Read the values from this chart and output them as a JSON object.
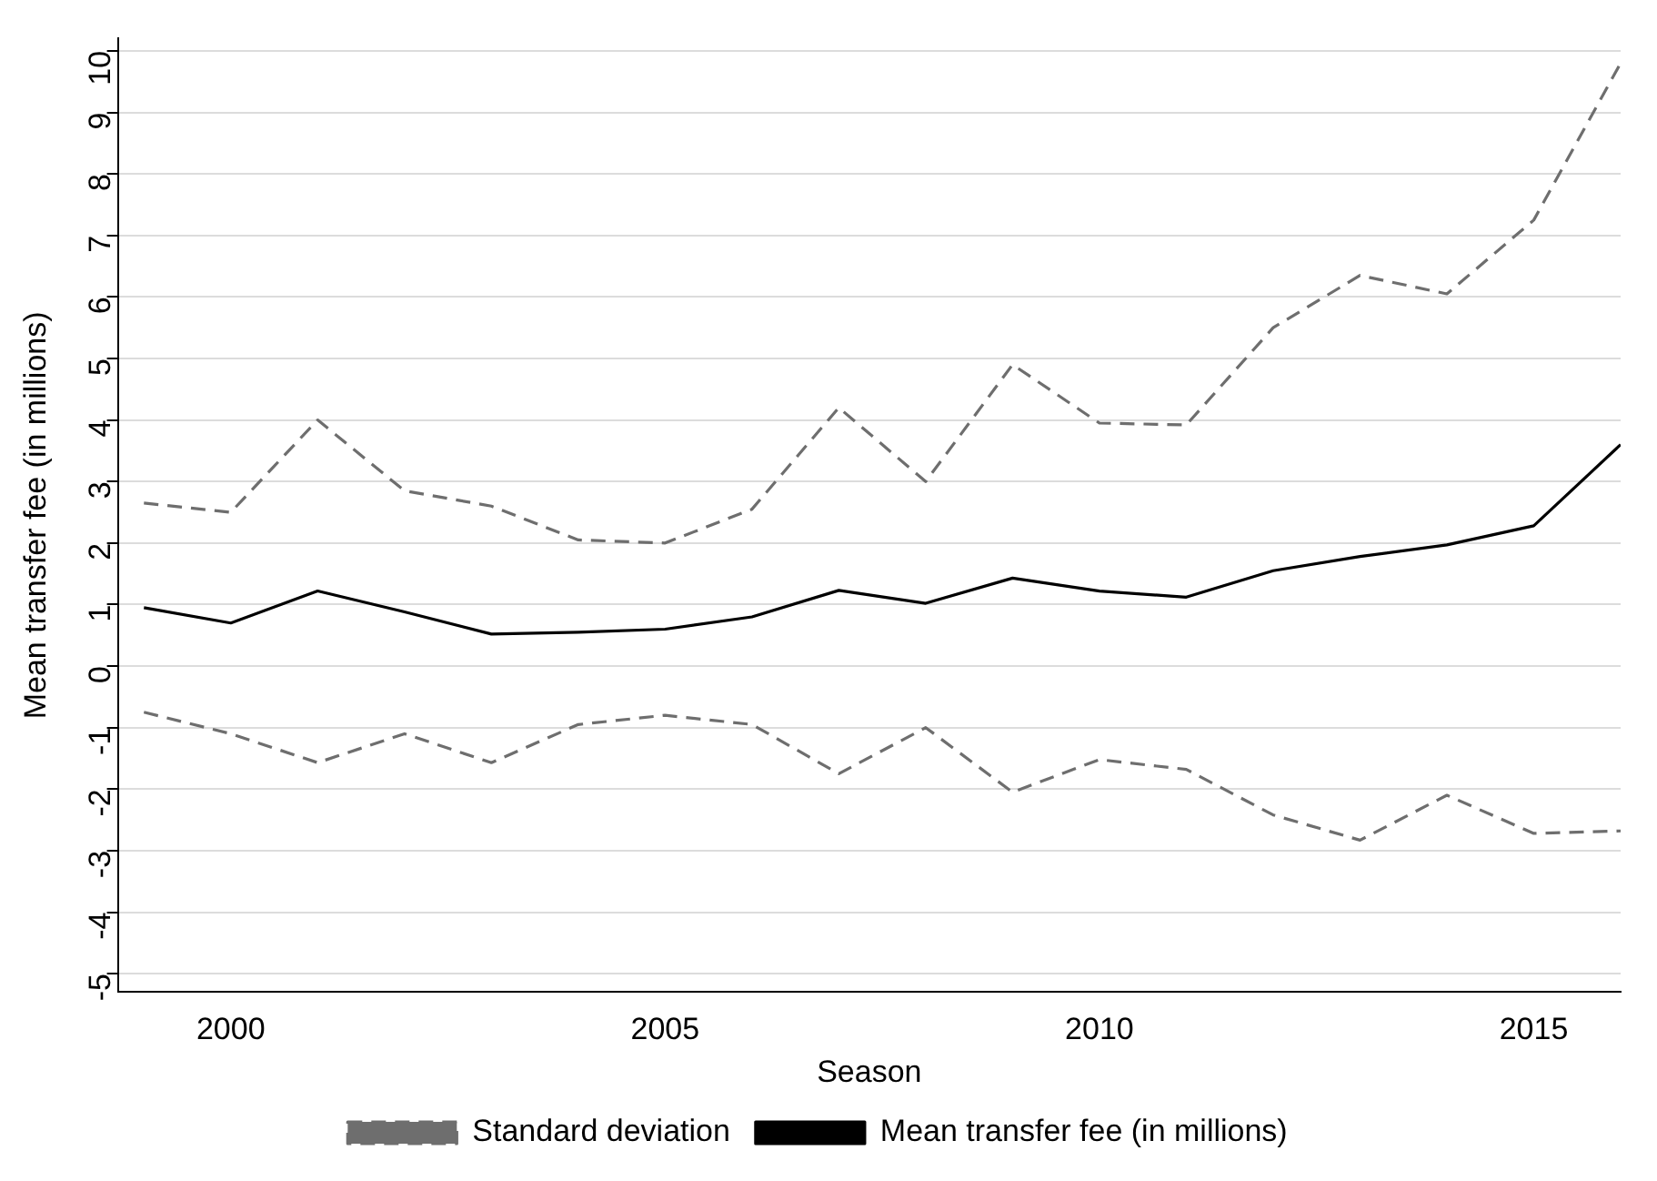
{
  "chart_data": {
    "type": "line",
    "xlabel": "Season",
    "ylabel": "Mean transfer fee (in millions)",
    "x": [
      1999,
      2000,
      2001,
      2002,
      2003,
      2004,
      2005,
      2006,
      2007,
      2008,
      2009,
      2010,
      2011,
      2012,
      2013,
      2014,
      2015,
      2016
    ],
    "series": [
      {
        "name": "Standard deviation",
        "color": "#6e6e6e",
        "line_style": "dashed",
        "values": [
          2.65,
          2.5,
          4.0,
          2.85,
          2.6,
          2.05,
          2.0,
          2.55,
          4.2,
          3.0,
          4.9,
          3.95,
          3.92,
          5.5,
          6.35,
          6.05,
          7.25,
          9.8
        ]
      },
      {
        "color": "#6e6e6e",
        "line_style": "dashed",
        "values": [
          -0.75,
          -1.1,
          -1.57,
          -1.1,
          -1.57,
          -0.95,
          -0.8,
          -0.95,
          -1.75,
          -1.0,
          -2.05,
          -1.52,
          -1.68,
          -2.42,
          -2.83,
          -2.1,
          -2.72,
          -2.68
        ]
      },
      {
        "name": "Mean transfer fee (in millions)",
        "color": "#000000",
        "line_style": "solid",
        "values": [
          0.95,
          0.7,
          1.22,
          0.88,
          0.52,
          0.55,
          0.6,
          0.8,
          1.23,
          1.02,
          1.43,
          1.22,
          1.12,
          1.55,
          1.78,
          1.97,
          2.28,
          3.6
        ]
      }
    ],
    "xlim": [
      1998.7,
      2016
    ],
    "xticks": [
      2000,
      2005,
      2010,
      2015
    ],
    "ylim": [
      -5.3,
      10.2
    ],
    "yticks": [
      -5,
      -4,
      -3,
      -2,
      -1,
      0,
      1,
      2,
      3,
      4,
      5,
      6,
      7,
      8,
      9,
      10
    ],
    "grid": "y",
    "legend": "bottom",
    "marker": "none"
  }
}
